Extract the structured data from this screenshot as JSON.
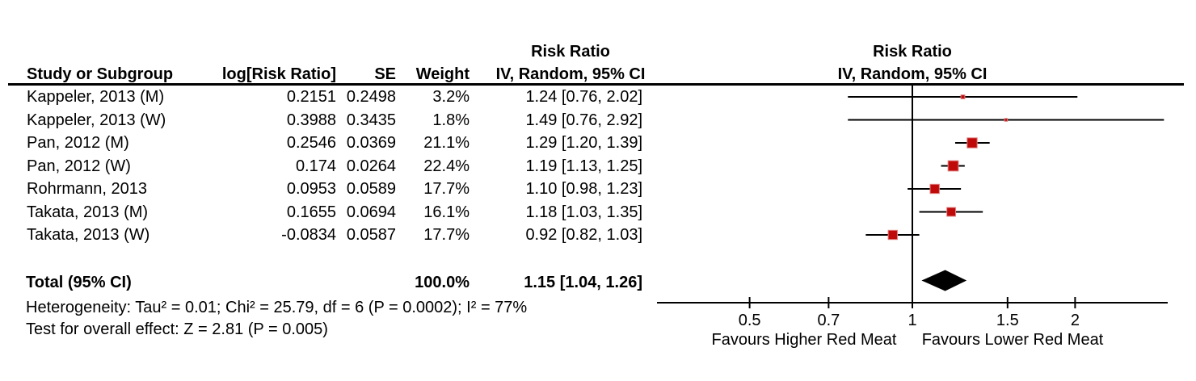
{
  "header": {
    "study": "Study or Subgroup",
    "log_rr": "log[Risk Ratio]",
    "se": "SE",
    "weight": "Weight",
    "rr_line1": "Risk Ratio",
    "rr_line2": "IV, Random, 95% CI",
    "plot_line1": "Risk Ratio",
    "plot_line2": "IV, Random, 95% CI"
  },
  "rows": [
    {
      "study": "Kappeler, 2013 (M)",
      "log_rr": "0.2151",
      "se": "0.2498",
      "weight": "3.2%",
      "ci_text": "1.24 [0.76, 2.02]"
    },
    {
      "study": "Kappeler, 2013 (W)",
      "log_rr": "0.3988",
      "se": "0.3435",
      "weight": "1.8%",
      "ci_text": "1.49 [0.76, 2.92]"
    },
    {
      "study": "Pan, 2012 (M)",
      "log_rr": "0.2546",
      "se": "0.0369",
      "weight": "21.1%",
      "ci_text": "1.29 [1.20, 1.39]"
    },
    {
      "study": "Pan, 2012 (W)",
      "log_rr": "0.174",
      "se": "0.0264",
      "weight": "22.4%",
      "ci_text": "1.19 [1.13, 1.25]"
    },
    {
      "study": "Rohrmann, 2013",
      "log_rr": "0.0953",
      "se": "0.0589",
      "weight": "17.7%",
      "ci_text": "1.10 [0.98, 1.23]"
    },
    {
      "study": "Takata, 2013 (M)",
      "log_rr": "0.1655",
      "se": "0.0694",
      "weight": "16.1%",
      "ci_text": "1.18 [1.03, 1.35]"
    },
    {
      "study": "Takata, 2013 (W)",
      "log_rr": "-0.0834",
      "se": "0.0587",
      "weight": "17.7%",
      "ci_text": "0.92 [0.82, 1.03]"
    }
  ],
  "total": {
    "label": "Total (95% CI)",
    "weight": "100.0%",
    "ci_text": "1.15 [1.04, 1.26]"
  },
  "footer": {
    "heterogeneity": "Heterogeneity: Tau² = 0.01; Chi² = 25.79, df = 6 (P = 0.0002); I² = 77%",
    "overall_effect": "Test for overall effect: Z = 2.81 (P = 0.005)"
  },
  "axis": {
    "tick_labels": [
      "0.5",
      "0.7",
      "1",
      "1.5",
      "2"
    ],
    "favours_left": "Favours Higher Red Meat",
    "favours_right": "Favours Lower Red Meat"
  },
  "colors": {
    "square_fill": "#c00a0a",
    "square_edge": "#e08080",
    "line": "#000000",
    "diamond": "#000000",
    "text": "#000000"
  },
  "chart_data": {
    "type": "scatter",
    "variant": "forest-plot-meta-analysis",
    "title": "Risk Ratio",
    "effect_model": "IV, Random, 95% CI",
    "x_scale": "log10",
    "x_ticks": [
      0.5,
      0.7,
      1,
      1.5,
      2
    ],
    "x_range_drawn": [
      0.34,
      2.97
    ],
    "null_line": 1,
    "xlabel_left": "Favours Higher Red Meat",
    "xlabel_right": "Favours Lower Red Meat",
    "studies": [
      {
        "name": "Kappeler, 2013 (M)",
        "log_rr": 0.2151,
        "se": 0.2498,
        "weight_pct": 3.2,
        "rr": 1.24,
        "ci_low": 0.76,
        "ci_high": 2.02
      },
      {
        "name": "Kappeler, 2013 (W)",
        "log_rr": 0.3988,
        "se": 0.3435,
        "weight_pct": 1.8,
        "rr": 1.49,
        "ci_low": 0.76,
        "ci_high": 2.92
      },
      {
        "name": "Pan, 2012 (M)",
        "log_rr": 0.2546,
        "se": 0.0369,
        "weight_pct": 21.1,
        "rr": 1.29,
        "ci_low": 1.2,
        "ci_high": 1.39
      },
      {
        "name": "Pan, 2012 (W)",
        "log_rr": 0.174,
        "se": 0.0264,
        "weight_pct": 22.4,
        "rr": 1.19,
        "ci_low": 1.13,
        "ci_high": 1.25
      },
      {
        "name": "Rohrmann, 2013",
        "log_rr": 0.0953,
        "se": 0.0589,
        "weight_pct": 17.7,
        "rr": 1.1,
        "ci_low": 0.98,
        "ci_high": 1.23
      },
      {
        "name": "Takata, 2013 (M)",
        "log_rr": 0.1655,
        "se": 0.0694,
        "weight_pct": 16.1,
        "rr": 1.18,
        "ci_low": 1.03,
        "ci_high": 1.35
      },
      {
        "name": "Takata, 2013 (W)",
        "log_rr": -0.0834,
        "se": 0.0587,
        "weight_pct": 17.7,
        "rr": 0.92,
        "ci_low": 0.82,
        "ci_high": 1.03
      }
    ],
    "total": {
      "name": "Total (95% CI)",
      "weight_pct": 100.0,
      "rr": 1.15,
      "ci_low": 1.04,
      "ci_high": 1.26
    },
    "heterogeneity": {
      "tau2": 0.01,
      "chi2": 25.79,
      "df": 6,
      "p": 0.0002,
      "i2_pct": 77
    },
    "overall_effect": {
      "z": 2.81,
      "p": 0.005
    }
  }
}
